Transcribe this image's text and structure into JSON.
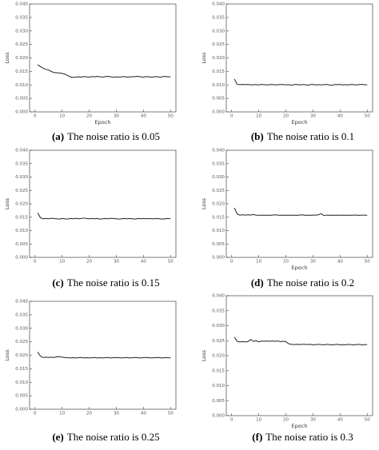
{
  "chart_data": [
    {
      "type": "line",
      "label": "(a)",
      "title": "The noise ratio is 0.05",
      "xlabel": "Epoch",
      "ylabel": "Loss",
      "x": [
        1,
        2,
        3,
        4,
        5,
        6,
        7,
        8,
        9,
        10,
        11,
        12,
        13,
        14,
        15,
        16,
        17,
        18,
        19,
        20,
        21,
        22,
        23,
        24,
        25,
        26,
        27,
        28,
        29,
        30,
        31,
        32,
        33,
        34,
        35,
        36,
        37,
        38,
        39,
        40,
        41,
        42,
        43,
        44,
        45,
        46,
        47,
        48,
        49,
        50
      ],
      "values": [
        0.0175,
        0.0168,
        0.0162,
        0.0158,
        0.0155,
        0.015,
        0.0146,
        0.0145,
        0.0144,
        0.0143,
        0.014,
        0.0135,
        0.013,
        0.0128,
        0.0129,
        0.013,
        0.0129,
        0.0131,
        0.013,
        0.0129,
        0.0131,
        0.013,
        0.0132,
        0.013,
        0.0129,
        0.0131,
        0.0132,
        0.013,
        0.0128,
        0.013,
        0.0129,
        0.013,
        0.0131,
        0.0129,
        0.013,
        0.013,
        0.0131,
        0.0132,
        0.013,
        0.0129,
        0.0131,
        0.013,
        0.0129,
        0.013,
        0.0131,
        0.0129,
        0.013,
        0.0132,
        0.013,
        0.013
      ],
      "color": "#222222",
      "xlim": [
        -2,
        52
      ],
      "xticks": [
        0,
        10,
        20,
        30,
        40,
        50
      ],
      "ylim": [
        0,
        0.04
      ],
      "yticks": [
        {
          "value": 0,
          "label": "0.000"
        },
        {
          "value": 0.005,
          "label": "0.005"
        },
        {
          "value": 0.01,
          "label": "0.010"
        },
        {
          "value": 0.015,
          "label": "0.015"
        },
        {
          "value": 0.02,
          "label": "0.020"
        },
        {
          "value": 0.025,
          "label": "0.025"
        },
        {
          "value": 0.03,
          "label": "0.030"
        },
        {
          "value": 0.035,
          "label": "0.035"
        },
        {
          "value": 0.04,
          "label": "0.040"
        }
      ]
    },
    {
      "type": "line",
      "label": "(b)",
      "title": "The noise ratio is 0.1",
      "xlabel": "Epoch",
      "ylabel": "Loss",
      "x": [
        1,
        2,
        3,
        4,
        5,
        6,
        7,
        8,
        9,
        10,
        11,
        12,
        13,
        14,
        15,
        16,
        17,
        18,
        19,
        20,
        21,
        22,
        23,
        24,
        25,
        26,
        27,
        28,
        29,
        30,
        31,
        32,
        33,
        34,
        35,
        36,
        37,
        38,
        39,
        40,
        41,
        42,
        43,
        44,
        45,
        46,
        47,
        48,
        49,
        50
      ],
      "values": [
        0.0122,
        0.0102,
        0.0101,
        0.0102,
        0.0101,
        0.0102,
        0.01,
        0.0101,
        0.0101,
        0.01,
        0.0102,
        0.0101,
        0.01,
        0.0101,
        0.0102,
        0.01,
        0.0101,
        0.0101,
        0.0102,
        0.01,
        0.0101,
        0.0099,
        0.0101,
        0.0102,
        0.01,
        0.0101,
        0.0101,
        0.0099,
        0.0101,
        0.0102,
        0.01,
        0.0101,
        0.01,
        0.0101,
        0.0102,
        0.01,
        0.0099,
        0.0101,
        0.0101,
        0.0102,
        0.01,
        0.0101,
        0.01,
        0.0102,
        0.0101,
        0.01,
        0.0101,
        0.0102,
        0.0101,
        0.01
      ],
      "color": "#222222",
      "xlim": [
        -2,
        52
      ],
      "xticks": [
        0,
        10,
        20,
        30,
        40,
        50
      ],
      "ylim": [
        0,
        0.04
      ],
      "yticks": [
        {
          "value": 0,
          "label": "0.000"
        },
        {
          "value": 0.005,
          "label": "0.005"
        },
        {
          "value": 0.01,
          "label": "0.010"
        },
        {
          "value": 0.015,
          "label": "0.015"
        },
        {
          "value": 0.02,
          "label": "0.020"
        },
        {
          "value": 0.025,
          "label": "0.025"
        },
        {
          "value": 0.03,
          "label": "0.030"
        },
        {
          "value": 0.035,
          "label": "0.035"
        },
        {
          "value": 0.04,
          "label": "0.040"
        }
      ]
    },
    {
      "type": "line",
      "label": "(c)",
      "title": "The noise ratio is 0.15",
      "ylabel": "Loss",
      "x": [
        1,
        2,
        3,
        4,
        5,
        6,
        7,
        8,
        9,
        10,
        11,
        12,
        13,
        14,
        15,
        16,
        17,
        18,
        19,
        20,
        21,
        22,
        23,
        24,
        25,
        26,
        27,
        28,
        29,
        30,
        31,
        32,
        33,
        34,
        35,
        36,
        37,
        38,
        39,
        40,
        41,
        42,
        43,
        44,
        45,
        46,
        47,
        48,
        49,
        50
      ],
      "values": [
        0.0166,
        0.0148,
        0.0144,
        0.0145,
        0.0144,
        0.0146,
        0.0145,
        0.0144,
        0.0143,
        0.0145,
        0.0144,
        0.0143,
        0.0145,
        0.0144,
        0.0146,
        0.0144,
        0.0145,
        0.0147,
        0.0145,
        0.0144,
        0.0145,
        0.0144,
        0.0145,
        0.0143,
        0.0144,
        0.0145,
        0.0144,
        0.0146,
        0.0145,
        0.0144,
        0.0143,
        0.0144,
        0.0145,
        0.0144,
        0.0145,
        0.0144,
        0.0143,
        0.0145,
        0.0144,
        0.0145,
        0.0144,
        0.0145,
        0.0144,
        0.0144,
        0.0145,
        0.0144,
        0.0143,
        0.0144,
        0.0145,
        0.0144
      ],
      "color": "#222222",
      "xlim": [
        -2,
        52
      ],
      "xticks": [
        0,
        10,
        20,
        30,
        40,
        50
      ],
      "ylim": [
        0,
        0.04
      ],
      "yticks": [
        {
          "value": 0,
          "label": "0.000"
        },
        {
          "value": 0.005,
          "label": "0.005"
        },
        {
          "value": 0.01,
          "label": "0.010"
        },
        {
          "value": 0.015,
          "label": "0.015"
        },
        {
          "value": 0.02,
          "label": "0.020"
        },
        {
          "value": 0.025,
          "label": "0.025"
        },
        {
          "value": 0.03,
          "label": "0.030"
        },
        {
          "value": 0.035,
          "label": "0.035"
        },
        {
          "value": 0.04,
          "label": "0.040"
        }
      ]
    },
    {
      "type": "line",
      "label": "(d)",
      "title": "The noise ratio is 0.2",
      "xlabel": "Epoch",
      "ylabel": "Loss",
      "x": [
        1,
        2,
        3,
        4,
        5,
        6,
        7,
        8,
        9,
        10,
        11,
        12,
        13,
        14,
        15,
        16,
        17,
        18,
        19,
        20,
        21,
        22,
        23,
        24,
        25,
        26,
        27,
        28,
        29,
        30,
        31,
        32,
        33,
        34,
        35,
        36,
        37,
        38,
        39,
        40,
        41,
        42,
        43,
        44,
        45,
        46,
        47,
        48,
        49,
        50
      ],
      "values": [
        0.0185,
        0.0162,
        0.0158,
        0.0159,
        0.0158,
        0.0159,
        0.0158,
        0.016,
        0.0158,
        0.0157,
        0.0158,
        0.0157,
        0.0158,
        0.0157,
        0.0158,
        0.0159,
        0.0158,
        0.0157,
        0.0158,
        0.0157,
        0.0158,
        0.0157,
        0.0158,
        0.0157,
        0.0158,
        0.0159,
        0.0157,
        0.0158,
        0.0157,
        0.0158,
        0.0158,
        0.0159,
        0.0163,
        0.0156,
        0.0158,
        0.0157,
        0.0158,
        0.0157,
        0.0158,
        0.0157,
        0.0158,
        0.0157,
        0.0158,
        0.0157,
        0.0158,
        0.0158,
        0.0157,
        0.0158,
        0.0158,
        0.0157
      ],
      "color": "#222222",
      "xlim": [
        -2,
        52
      ],
      "xticks": [
        0,
        10,
        20,
        30,
        40,
        50
      ],
      "ylim": [
        0,
        0.04
      ],
      "yticks": [
        {
          "value": 0,
          "label": "0.000"
        },
        {
          "value": 0.005,
          "label": "0.005"
        },
        {
          "value": 0.01,
          "label": "0.010"
        },
        {
          "value": 0.015,
          "label": "0.015"
        },
        {
          "value": 0.02,
          "label": "0.020"
        },
        {
          "value": 0.025,
          "label": "0.025"
        },
        {
          "value": 0.03,
          "label": "0.030"
        },
        {
          "value": 0.035,
          "label": "0.035"
        },
        {
          "value": 0.04,
          "label": "0.040"
        }
      ]
    },
    {
      "type": "line",
      "label": "(e)",
      "title": "The noise ratio is 0.25",
      "ylabel": "Loss",
      "x": [
        1,
        2,
        3,
        4,
        5,
        6,
        7,
        8,
        9,
        10,
        11,
        12,
        13,
        14,
        15,
        16,
        17,
        18,
        19,
        20,
        21,
        22,
        23,
        24,
        25,
        26,
        27,
        28,
        29,
        30,
        31,
        32,
        33,
        34,
        35,
        36,
        37,
        38,
        39,
        40,
        41,
        42,
        43,
        44,
        45,
        46,
        47,
        48,
        49,
        50
      ],
      "values": [
        0.0212,
        0.0197,
        0.0192,
        0.0193,
        0.0192,
        0.0193,
        0.0192,
        0.0194,
        0.0195,
        0.0193,
        0.0192,
        0.0191,
        0.019,
        0.0191,
        0.019,
        0.0191,
        0.0192,
        0.019,
        0.0191,
        0.019,
        0.0191,
        0.0192,
        0.019,
        0.0191,
        0.019,
        0.0191,
        0.0192,
        0.019,
        0.0191,
        0.0192,
        0.0191,
        0.019,
        0.0191,
        0.0192,
        0.019,
        0.0191,
        0.0192,
        0.0191,
        0.019,
        0.0191,
        0.0192,
        0.0191,
        0.019,
        0.0191,
        0.0192,
        0.0191,
        0.019,
        0.0191,
        0.0191,
        0.019
      ],
      "color": "#222222",
      "xlim": [
        -2,
        52
      ],
      "xticks": [
        0,
        10,
        20,
        30,
        40,
        50
      ],
      "ylim": [
        0,
        0.04
      ],
      "yticks": [
        {
          "value": 0,
          "label": "0.000"
        },
        {
          "value": 0.005,
          "label": "0.005"
        },
        {
          "value": 0.01,
          "label": "0.010"
        },
        {
          "value": 0.015,
          "label": "0.015"
        },
        {
          "value": 0.02,
          "label": "0.020"
        },
        {
          "value": 0.025,
          "label": "0.025"
        },
        {
          "value": 0.03,
          "label": "0.030"
        },
        {
          "value": 0.035,
          "label": "0.035"
        },
        {
          "value": 0.04,
          "label": "0.040"
        }
      ]
    },
    {
      "type": "line",
      "label": "(f)",
      "title": "The noise ratio is 0.3",
      "xlabel": "Epoch",
      "ylabel": "Loss",
      "x": [
        1,
        2,
        3,
        4,
        5,
        6,
        7,
        8,
        9,
        10,
        11,
        12,
        13,
        14,
        15,
        16,
        17,
        18,
        19,
        20,
        21,
        22,
        23,
        24,
        25,
        26,
        27,
        28,
        29,
        30,
        31,
        32,
        33,
        34,
        35,
        36,
        37,
        38,
        39,
        40,
        41,
        42,
        43,
        44,
        45,
        46,
        47,
        48,
        49,
        50
      ],
      "values": [
        0.0262,
        0.0248,
        0.0246,
        0.0247,
        0.0246,
        0.0247,
        0.0254,
        0.0248,
        0.025,
        0.0246,
        0.0249,
        0.0248,
        0.0249,
        0.0248,
        0.0249,
        0.0248,
        0.0249,
        0.0247,
        0.0248,
        0.0247,
        0.024,
        0.0238,
        0.0237,
        0.0238,
        0.0237,
        0.0238,
        0.0238,
        0.0237,
        0.0238,
        0.0236,
        0.0237,
        0.0238,
        0.0237,
        0.0236,
        0.0238,
        0.0237,
        0.0236,
        0.0237,
        0.0238,
        0.0236,
        0.0237,
        0.0236,
        0.0238,
        0.0237,
        0.0236,
        0.0237,
        0.0238,
        0.0236,
        0.0237,
        0.0237
      ],
      "color": "#222222",
      "xlim": [
        -2,
        52
      ],
      "xticks": [
        0,
        10,
        20,
        30,
        40,
        50
      ],
      "ylim": [
        0,
        0.04
      ],
      "yticks": [
        {
          "value": 0,
          "label": "0.000"
        },
        {
          "value": 0.005,
          "label": "0.005"
        },
        {
          "value": 0.01,
          "label": "0.010"
        },
        {
          "value": 0.015,
          "label": "0.015"
        },
        {
          "value": 0.02,
          "label": "0.020"
        },
        {
          "value": 0.025,
          "label": "0.025"
        },
        {
          "value": 0.03,
          "label": "0.030"
        },
        {
          "value": 0.035,
          "label": "0.035"
        },
        {
          "value": 0.04,
          "label": "0.040"
        }
      ]
    }
  ]
}
